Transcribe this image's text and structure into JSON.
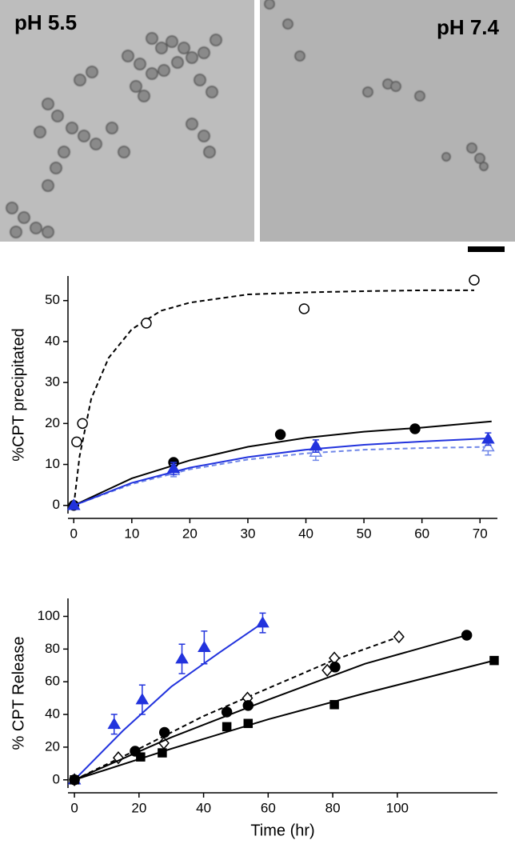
{
  "micrographs": {
    "labels": [
      "pH 5.5",
      "pH 7.4"
    ]
  },
  "chart_data": [
    {
      "type": "scatter",
      "ylabel": "%CPT precipitated",
      "xlim": [
        -1,
        73
      ],
      "xticks": [
        0,
        10,
        20,
        30,
        40,
        50,
        60,
        70
      ],
      "ylim": [
        -2,
        56
      ],
      "yticks": [
        0,
        10,
        20,
        30,
        40,
        50
      ],
      "series": [
        {
          "color": "#000000",
          "marker": "circle",
          "filled": false,
          "x": [
            0.5,
            1.5,
            12.5,
            39.7,
            69
          ],
          "values": [
            15.5,
            20,
            44.5,
            48,
            55
          ],
          "fit": {
            "dashed": true,
            "x": [
              0,
              1,
              3,
              6,
              10,
              15,
              20,
              30,
              40,
              50,
              60,
              69
            ],
            "values": [
              0,
              12,
              26,
              36,
              43,
              47.5,
              49.5,
              51.5,
              52,
              52.3,
              52.5,
              52.5
            ]
          }
        },
        {
          "color": "#000000",
          "marker": "circle",
          "filled": true,
          "x": [
            0,
            17.2,
            35.6,
            58.8
          ],
          "values": [
            0,
            10.5,
            17.3,
            18.7
          ],
          "fit": {
            "dashed": false,
            "x": [
              0,
              10,
              20,
              30,
              40,
              50,
              60,
              72
            ],
            "values": [
              0,
              6.6,
              11,
              14.3,
              16.5,
              18,
              19,
              20.5
            ]
          }
        },
        {
          "color": "#6f86e8",
          "marker": "triangle",
          "filled": false,
          "x": [
            0,
            17.2,
            41.7,
            71.4
          ],
          "values": [
            0,
            8.5,
            13,
            14.3
          ],
          "errors": [
            0,
            1.5,
            2,
            2
          ],
          "fit": {
            "dashed": true,
            "x": [
              0,
              10,
              20,
              30,
              40,
              50,
              60,
              72
            ],
            "values": [
              0,
              5.2,
              8.8,
              11.2,
              12.7,
              13.6,
              14,
              14.3
            ]
          }
        },
        {
          "color": "#2233dd",
          "marker": "triangle",
          "filled": true,
          "x": [
            0,
            17.2,
            41.7,
            71.4
          ],
          "values": [
            0,
            9,
            14.5,
            16.2
          ],
          "errors": [
            0,
            1.5,
            1.5,
            1.5
          ],
          "fit": {
            "dashed": false,
            "x": [
              0,
              10,
              20,
              30,
              40,
              50,
              60,
              72
            ],
            "values": [
              0,
              5.5,
              9.2,
              11.8,
              13.6,
              14.8,
              15.6,
              16.4
            ]
          }
        }
      ]
    },
    {
      "type": "scatter",
      "xlabel": "Time (hr)",
      "ylabel": "% CPT Release",
      "xlim": [
        -2,
        131
      ],
      "xticks": [
        0,
        20,
        40,
        60,
        80,
        100
      ],
      "ylim": [
        -5,
        111
      ],
      "yticks": [
        0,
        20,
        40,
        60,
        80,
        100
      ],
      "series": [
        {
          "color": "#2233dd",
          "marker": "triangle",
          "filled": true,
          "x": [
            0,
            12.3,
            21,
            33.3,
            40.2,
            58.3
          ],
          "values": [
            0,
            34,
            49,
            74,
            81,
            96
          ],
          "errors": [
            0,
            6,
            9,
            9,
            10,
            6
          ],
          "fit": {
            "dashed": false,
            "x": [
              0,
              15,
              30,
              45,
              58.3
            ],
            "values": [
              0,
              30,
              57,
              78,
              96
            ]
          }
        },
        {
          "color": "#000000",
          "marker": "diamond",
          "filled": false,
          "x": [
            0,
            13.6,
            27.7,
            53.6,
            78.3,
            80.5,
            100.5
          ],
          "values": [
            0,
            13.5,
            22.5,
            50,
            67,
            74.5,
            87.5
          ],
          "fit": {
            "dashed": true,
            "x": [
              0,
              20,
              40,
              60,
              80,
              100.5
            ],
            "values": [
              0,
              19,
              39,
              56,
              73,
              87.5
            ]
          }
        },
        {
          "color": "#000000",
          "marker": "circle",
          "filled": true,
          "x": [
            0,
            18.8,
            27.9,
            47.2,
            53.8,
            80.7,
            121.5
          ],
          "values": [
            0,
            17.5,
            29,
            41.5,
            45.5,
            69,
            88.5
          ],
          "fit": {
            "dashed": false,
            "x": [
              0,
              30,
              60,
              90,
              121.5
            ],
            "values": [
              0,
              26,
              49,
              71,
              88.5
            ]
          }
        },
        {
          "color": "#000000",
          "marker": "square",
          "filled": true,
          "x": [
            0,
            20.5,
            27.2,
            47.2,
            53.8,
            80.5,
            130
          ],
          "values": [
            0,
            14,
            16.5,
            32.5,
            34.5,
            46,
            73
          ],
          "fit": {
            "dashed": false,
            "x": [
              0,
              30,
              60,
              90,
              130
            ],
            "values": [
              0,
              19,
              37,
              53,
              73
            ]
          }
        }
      ]
    }
  ]
}
